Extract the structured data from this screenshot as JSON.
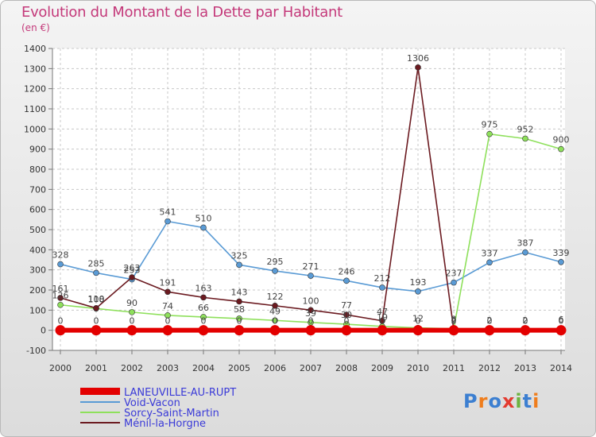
{
  "title": "Evolution du Montant de la Dette par Habitant",
  "subtitle": "(en €)",
  "logo": {
    "text": "Proxiti",
    "colors": [
      "#3c7fd1",
      "#ef7d1c",
      "#3c7fd1",
      "#e33a2f",
      "#6db33f",
      "#3c7fd1",
      "#ef7d1c"
    ]
  },
  "chart_data": {
    "type": "line",
    "x": [
      "2000",
      "2001",
      "2002",
      "2003",
      "2004",
      "2005",
      "2006",
      "2007",
      "2008",
      "2009",
      "2010",
      "2011",
      "2012",
      "2013",
      "2014"
    ],
    "ylim": [
      -100,
      1400
    ],
    "yticks": [
      -100,
      0,
      100,
      200,
      300,
      400,
      500,
      600,
      700,
      800,
      900,
      1000,
      1100,
      1200,
      1300,
      1400
    ],
    "grid": true,
    "legend_position": "bottom-left",
    "series": [
      {
        "name": "LANEUVILLE-AU-RUPT",
        "color": "#e30000",
        "values": [
          0,
          0,
          0,
          0,
          0,
          0,
          0,
          0,
          0,
          0,
          0,
          0,
          0,
          0,
          0
        ]
      },
      {
        "name": "Void-Vacon",
        "color": "#5a9bd5",
        "values": [
          328,
          285,
          253,
          541,
          510,
          325,
          295,
          271,
          246,
          212,
          193,
          237,
          337,
          387,
          339
        ]
      },
      {
        "name": "Sorcy-Saint-Martin",
        "color": "#8ee05b",
        "values": [
          126,
          108,
          90,
          74,
          66,
          58,
          49,
          39,
          30,
          19,
          12,
          8,
          975,
          952,
          900
        ]
      },
      {
        "name": "Ménil-la-Horgne",
        "color": "#6b1a20",
        "values": [
          161,
          110,
          263,
          191,
          163,
          143,
          122,
          100,
          77,
          47,
          1306,
          2,
          2,
          2,
          6
        ]
      }
    ]
  }
}
